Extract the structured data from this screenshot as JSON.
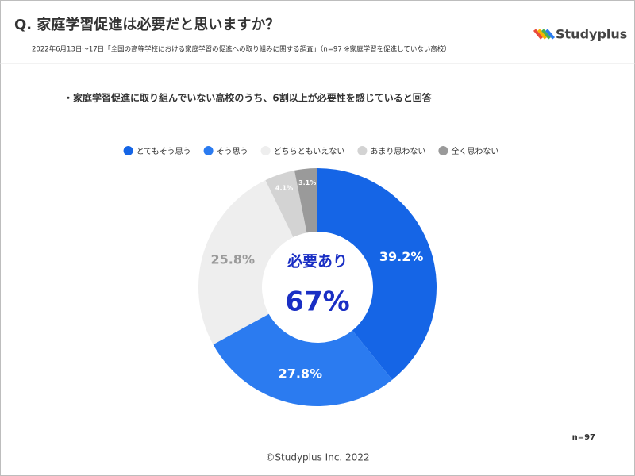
{
  "chart_data": {
    "type": "donut",
    "title": "Q. 家庭学習促進は必要だと思いますか？",
    "subtitle": "2022年6月13日〜17日「全国の高等学校における家庭学習の促進への取り組みに関する調査」（n=97 ※家庭学習を促進していない高校）",
    "headline": "・家庭学習促進に取り組んでいない高校のうち、6割以上が必要性を感じていると回答",
    "categories": [
      "とてもそう思う",
      "そう思う",
      "どちらともいえない",
      "あまり思わない",
      "全く思わない"
    ],
    "values": [
      39.2,
      27.8,
      25.8,
      4.1,
      3.1
    ],
    "value_labels": [
      "39.2%",
      "27.8%",
      "25.8%",
      "4.1%",
      "3.1%"
    ],
    "colors": [
      "#1565e6",
      "#2b7bf0",
      "#eeeeee",
      "#d3d3d3",
      "#9a9a9a"
    ],
    "center_label": "必要あり",
    "center_value": "67%",
    "note": "n=97",
    "footer": "©Studyplus Inc. 2022",
    "logo": "Studyplus"
  }
}
